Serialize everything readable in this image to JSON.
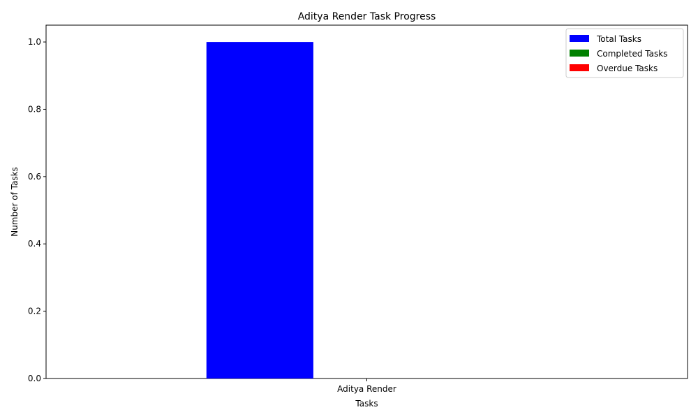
{
  "chart_data": {
    "type": "bar",
    "title": "Aditya Render Task Progress",
    "xlabel": "Tasks",
    "ylabel": "Number of Tasks",
    "categories": [
      "Aditya Render"
    ],
    "series": [
      {
        "name": "Total Tasks",
        "values": [
          1
        ],
        "color": "#0000ff"
      },
      {
        "name": "Completed Tasks",
        "values": [
          0
        ],
        "color": "#008000"
      },
      {
        "name": "Overdue Tasks",
        "values": [
          0
        ],
        "color": "#ff0000"
      }
    ],
    "ylim": [
      0,
      1.05
    ],
    "yticks": [
      "0.0",
      "0.2",
      "0.4",
      "0.6",
      "0.8",
      "1.0"
    ],
    "grid": false,
    "legend_position": "top-right"
  }
}
